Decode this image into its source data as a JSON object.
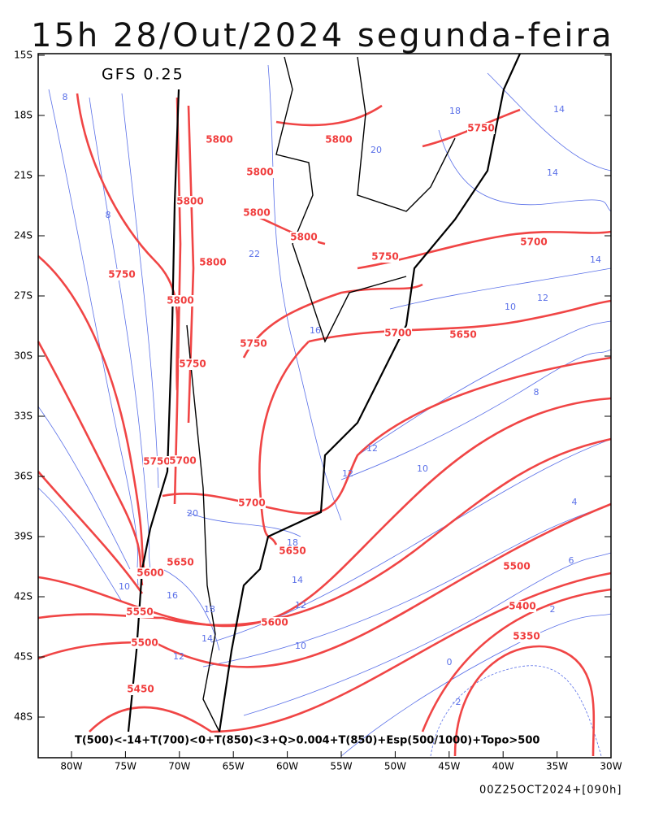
{
  "header": {
    "title": "15h 28/Out/2024 segunda-feira",
    "model": "GFS 0.25"
  },
  "axes": {
    "lat_labels": [
      "15S",
      "18S",
      "21S",
      "24S",
      "27S",
      "30S",
      "33S",
      "36S",
      "39S",
      "42S",
      "45S",
      "48S"
    ],
    "lon_labels": [
      "80W",
      "75W",
      "70W",
      "65W",
      "60W",
      "55W",
      "50W",
      "45W",
      "40W",
      "35W",
      "30W"
    ]
  },
  "height_labels": [
    "5800",
    "5800",
    "5750",
    "5800",
    "5800",
    "5800",
    "5800",
    "5700",
    "5750",
    "5800",
    "5750",
    "5800",
    "5700",
    "5650",
    "5750",
    "5750",
    "5750",
    "5700",
    "5700",
    "5650",
    "5650",
    "5600",
    "5500",
    "5400",
    "5550",
    "5600",
    "5350",
    "5500",
    "5450"
  ],
  "temperature_labels": [
    "14",
    "14",
    "18",
    "20",
    "22",
    "16",
    "12",
    "12",
    "10",
    "20",
    "18",
    "14",
    "12",
    "10",
    "8",
    "4",
    "6",
    "2",
    "0",
    "-2",
    "10",
    "16",
    "18",
    "14",
    "12",
    "8",
    "8",
    "10",
    "12",
    "14"
  ],
  "footer": {
    "legend": "T(500)<-14+T(700)<0+T(850)<3+Q>0.004+T(850)+Esp(500/1000)+Topo>500",
    "run": "00Z25OCT2024+[090h]"
  }
}
